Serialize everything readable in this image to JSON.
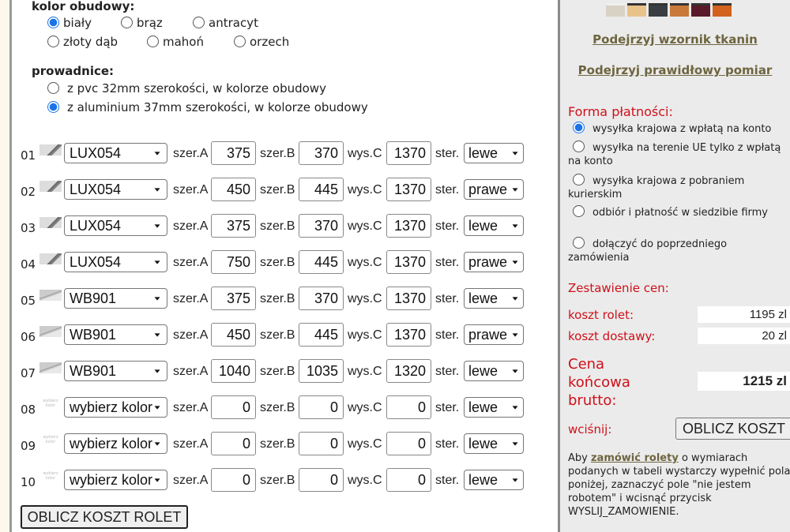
{
  "kolor": {
    "label": "kolor obudowy:",
    "options": [
      {
        "label": "biały",
        "checked": true
      },
      {
        "label": "brąz",
        "checked": false
      },
      {
        "label": "antracyt",
        "checked": false
      },
      {
        "label": "złoty dąb",
        "checked": false
      },
      {
        "label": "mahoń",
        "checked": false
      },
      {
        "label": "orzech",
        "checked": false
      }
    ]
  },
  "prowadnice": {
    "label": "prowadnice:",
    "options": [
      {
        "label": "z pvc 32mm szerokości, w kolorze obudowy",
        "checked": false
      },
      {
        "label": "z aluminium 37mm szerokości, w kolorze obudowy",
        "checked": true
      }
    ]
  },
  "labels": {
    "a": "szer.A",
    "b": "szer.B",
    "c": "wys.C",
    "s": "ster.",
    "thumb_placeholder": "wybierz kolor"
  },
  "rows": [
    {
      "num": "01",
      "color": "LUX054",
      "icon": "lux",
      "a": "375",
      "b": "370",
      "c": "1370",
      "ster": "lewe"
    },
    {
      "num": "02",
      "color": "LUX054",
      "icon": "lux",
      "a": "450",
      "b": "445",
      "c": "1370",
      "ster": "prawe"
    },
    {
      "num": "03",
      "color": "LUX054",
      "icon": "lux",
      "a": "375",
      "b": "370",
      "c": "1370",
      "ster": "lewe"
    },
    {
      "num": "04",
      "color": "LUX054",
      "icon": "lux",
      "a": "750",
      "b": "445",
      "c": "1370",
      "ster": "prawe"
    },
    {
      "num": "05",
      "color": "WB901",
      "icon": "wb",
      "a": "375",
      "b": "370",
      "c": "1370",
      "ster": "lewe"
    },
    {
      "num": "06",
      "color": "WB901",
      "icon": "wb",
      "a": "450",
      "b": "445",
      "c": "1370",
      "ster": "prawe"
    },
    {
      "num": "07",
      "color": "WB901",
      "icon": "wb",
      "a": "1040",
      "b": "1035",
      "c": "1320",
      "ster": "lewe"
    },
    {
      "num": "08",
      "color": "wybierz kolor",
      "icon": "none",
      "a": "0",
      "b": "0",
      "c": "0",
      "ster": "lewe"
    },
    {
      "num": "09",
      "color": "wybierz kolor",
      "icon": "none",
      "a": "0",
      "b": "0",
      "c": "0",
      "ster": "lewe"
    },
    {
      "num": "10",
      "color": "wybierz kolor",
      "icon": "none",
      "a": "0",
      "b": "0",
      "c": "0",
      "ster": "lewe"
    }
  ],
  "calc_button": "OBLICZ KOSZT ROLET",
  "panel": {
    "swatches": [
      "#d8d2c4",
      "#e9c28a",
      "#3a3e42",
      "#c77a3a",
      "#5a1a2a",
      "#d2621e"
    ],
    "link1": "Podejrzyj wzornik tkanin",
    "link2": "Podejrzyj prawidłowy pomiar",
    "payment_title": "Forma płatności:",
    "payments": [
      {
        "label": "wysyłka krajowa z wpłatą na konto",
        "checked": true
      },
      {
        "label": "wysyłka na terenie UE tylko z wpłatą na konto",
        "checked": false
      },
      {
        "label": "wysyłka krajowa z pobraniem kurierskim",
        "checked": false
      },
      {
        "label": "odbiór i płatność w siedzibie firmy",
        "checked": false
      },
      {
        "label": "dołączyć do poprzedniego zamówienia",
        "checked": false
      }
    ],
    "summary_title": "Zestawienie cen:",
    "koszt_rolet_label": "koszt rolet:",
    "koszt_rolet": "1195 zl",
    "koszt_dostawy_label": "koszt dostawy:",
    "koszt_dostawy": "20 zl",
    "cena_label": "Cena końcowa brutto:",
    "cena": "1215 zl",
    "press_label": "wciśnij:",
    "calc_button": "OBLICZ KOSZT",
    "info_pre": "Aby ",
    "info_link": "zamówić rolety",
    "info_post": " o wymiarach podanych w tabeli wystarczy wypełnić pola poniżej, zaznaczyć pole \"nie jestem robotem\" i wcisnąć przycisk WYSLIJ_ZAMOWIENIE."
  }
}
